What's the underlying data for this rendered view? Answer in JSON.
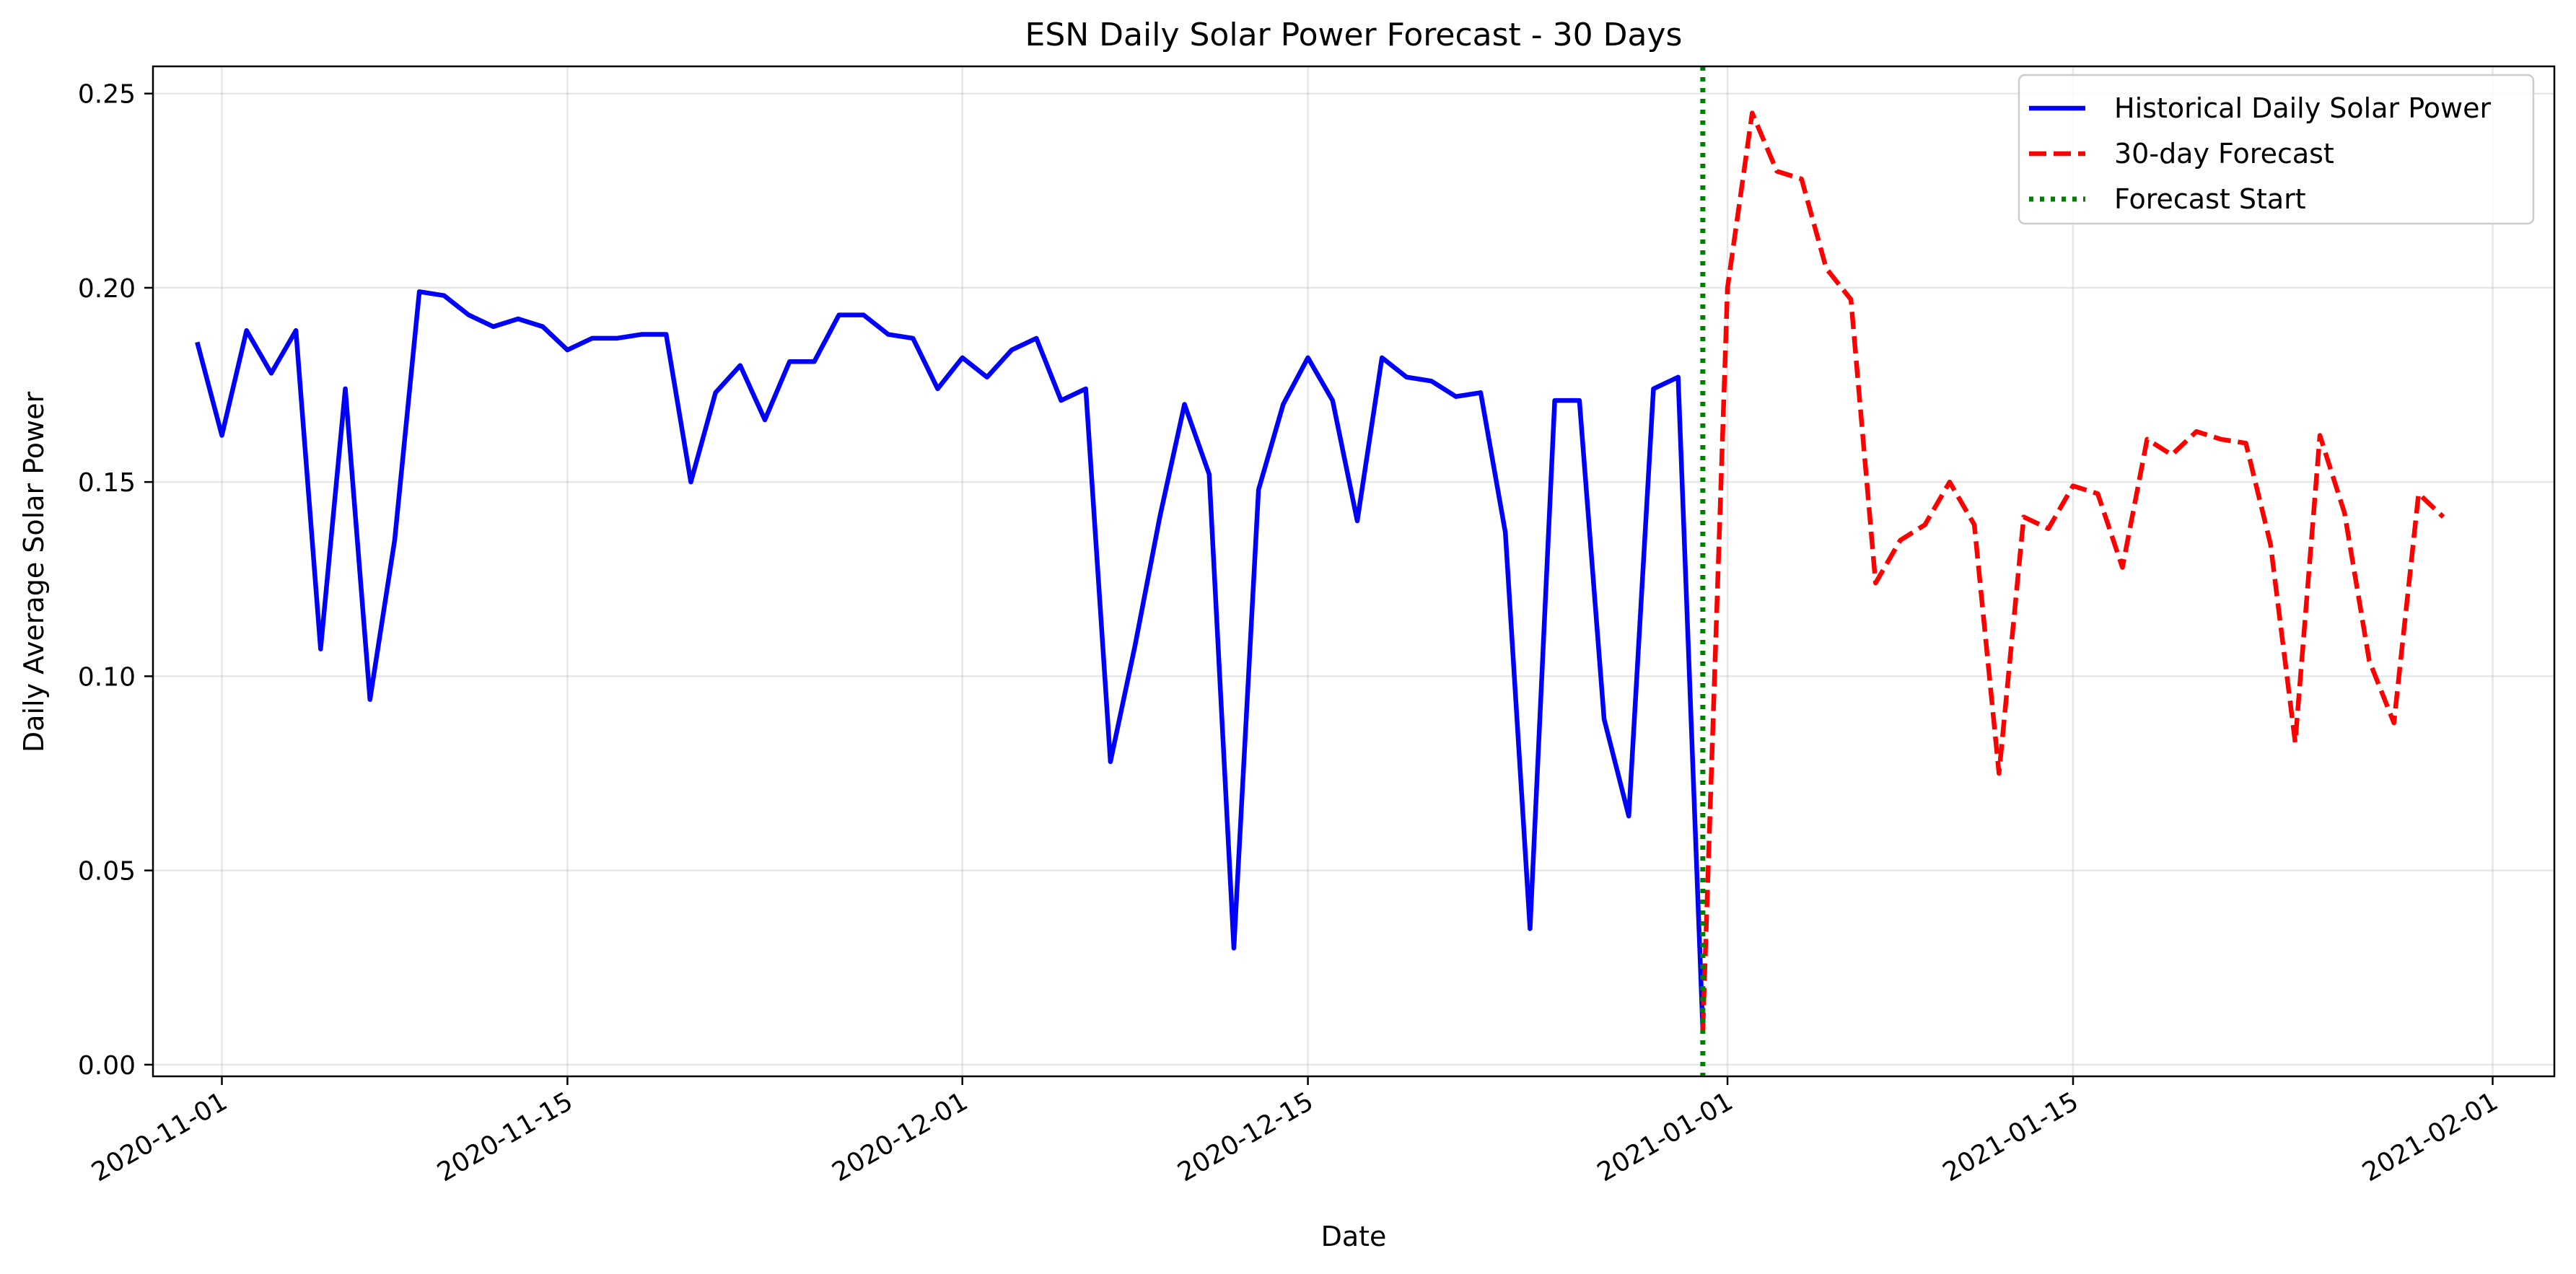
{
  "chart_data": {
    "type": "line",
    "title": "ESN Daily Solar Power Forecast - 30 Days",
    "xlabel": "Date",
    "ylabel": "Daily Average Solar Power",
    "xlim": [
      "2020-10-29T05:00",
      "2021-02-03T12:00"
    ],
    "ylim": [
      -0.003,
      0.257
    ],
    "x_ticks": [
      "2020-11-01",
      "2020-11-15",
      "2020-12-01",
      "2020-12-15",
      "2021-01-01",
      "2021-01-15",
      "2021-02-01"
    ],
    "y_ticks": [
      0.0,
      0.05,
      0.1,
      0.15,
      0.2,
      0.25
    ],
    "y_tick_labels": [
      "0.00",
      "0.05",
      "0.10",
      "0.15",
      "0.20",
      "0.25"
    ],
    "grid": true,
    "legend_position": "top-right",
    "series": [
      {
        "name": "Historical Daily Solar Power",
        "style": "solid",
        "color": "#0000ff",
        "points": [
          [
            "2020-10-31",
            0.186
          ],
          [
            "2020-11-01",
            0.162
          ],
          [
            "2020-11-02",
            0.189
          ],
          [
            "2020-11-03",
            0.178
          ],
          [
            "2020-11-04",
            0.189
          ],
          [
            "2020-11-05",
            0.107
          ],
          [
            "2020-11-06",
            0.174
          ],
          [
            "2020-11-07",
            0.094
          ],
          [
            "2020-11-08",
            0.135
          ],
          [
            "2020-11-09",
            0.199
          ],
          [
            "2020-11-10",
            0.198
          ],
          [
            "2020-11-11",
            0.193
          ],
          [
            "2020-11-12",
            0.19
          ],
          [
            "2020-11-13",
            0.192
          ],
          [
            "2020-11-14",
            0.19
          ],
          [
            "2020-11-15",
            0.184
          ],
          [
            "2020-11-16",
            0.187
          ],
          [
            "2020-11-17",
            0.187
          ],
          [
            "2020-11-18",
            0.188
          ],
          [
            "2020-11-19",
            0.188
          ],
          [
            "2020-11-20",
            0.15
          ],
          [
            "2020-11-21",
            0.173
          ],
          [
            "2020-11-22",
            0.18
          ],
          [
            "2020-11-23",
            0.166
          ],
          [
            "2020-11-24",
            0.181
          ],
          [
            "2020-11-25",
            0.181
          ],
          [
            "2020-11-26",
            0.193
          ],
          [
            "2020-11-27",
            0.193
          ],
          [
            "2020-11-28",
            0.188
          ],
          [
            "2020-11-29",
            0.187
          ],
          [
            "2020-11-30",
            0.174
          ],
          [
            "2020-12-01",
            0.182
          ],
          [
            "2020-12-02",
            0.177
          ],
          [
            "2020-12-03",
            0.184
          ],
          [
            "2020-12-04",
            0.187
          ],
          [
            "2020-12-05",
            0.171
          ],
          [
            "2020-12-06",
            0.174
          ],
          [
            "2020-12-07",
            0.078
          ],
          [
            "2020-12-08",
            0.108
          ],
          [
            "2020-12-09",
            0.141
          ],
          [
            "2020-12-10",
            0.17
          ],
          [
            "2020-12-11",
            0.152
          ],
          [
            "2020-12-12",
            0.03
          ],
          [
            "2020-12-13",
            0.148
          ],
          [
            "2020-12-14",
            0.17
          ],
          [
            "2020-12-15",
            0.182
          ],
          [
            "2020-12-16",
            0.171
          ],
          [
            "2020-12-17",
            0.14
          ],
          [
            "2020-12-18",
            0.182
          ],
          [
            "2020-12-19",
            0.177
          ],
          [
            "2020-12-20",
            0.176
          ],
          [
            "2020-12-21",
            0.172
          ],
          [
            "2020-12-22",
            0.173
          ],
          [
            "2020-12-23",
            0.137
          ],
          [
            "2020-12-24",
            0.035
          ],
          [
            "2020-12-25",
            0.171
          ],
          [
            "2020-12-26",
            0.171
          ],
          [
            "2020-12-27",
            0.089
          ],
          [
            "2020-12-28",
            0.064
          ],
          [
            "2020-12-29",
            0.174
          ],
          [
            "2020-12-30",
            0.177
          ],
          [
            "2020-12-31",
            0.009
          ]
        ]
      },
      {
        "name": "30-day Forecast",
        "style": "dashed",
        "color": "#ff0000",
        "points": [
          [
            "2020-12-31",
            0.009
          ],
          [
            "2021-01-01",
            0.2
          ],
          [
            "2021-01-02",
            0.245
          ],
          [
            "2021-01-03",
            0.23
          ],
          [
            "2021-01-04",
            0.228
          ],
          [
            "2021-01-05",
            0.205
          ],
          [
            "2021-01-06",
            0.197
          ],
          [
            "2021-01-07",
            0.124
          ],
          [
            "2021-01-08",
            0.135
          ],
          [
            "2021-01-09",
            0.139
          ],
          [
            "2021-01-10",
            0.15
          ],
          [
            "2021-01-11",
            0.139
          ],
          [
            "2021-01-12",
            0.075
          ],
          [
            "2021-01-13",
            0.141
          ],
          [
            "2021-01-14",
            0.138
          ],
          [
            "2021-01-15",
            0.149
          ],
          [
            "2021-01-16",
            0.147
          ],
          [
            "2021-01-17",
            0.128
          ],
          [
            "2021-01-18",
            0.161
          ],
          [
            "2021-01-19",
            0.157
          ],
          [
            "2021-01-20",
            0.163
          ],
          [
            "2021-01-21",
            0.161
          ],
          [
            "2021-01-22",
            0.16
          ],
          [
            "2021-01-23",
            0.134
          ],
          [
            "2021-01-24",
            0.083
          ],
          [
            "2021-01-25",
            0.162
          ],
          [
            "2021-01-26",
            0.142
          ],
          [
            "2021-01-27",
            0.104
          ],
          [
            "2021-01-28",
            0.088
          ],
          [
            "2021-01-29",
            0.147
          ],
          [
            "2021-01-30",
            0.141
          ]
        ]
      },
      {
        "name": "Forecast Start",
        "style": "dotted",
        "color": "#008000",
        "vline_x": "2020-12-31"
      }
    ]
  }
}
